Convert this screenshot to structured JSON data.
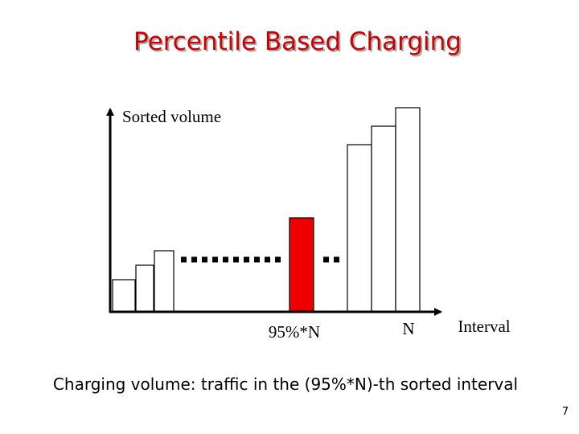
{
  "header": {
    "title": "Percentile Based Charging"
  },
  "diagram": {
    "y_axis_label": "Sorted volume",
    "x_axis_label": "Interval",
    "marker_percentile": "95%*N",
    "marker_last": "N"
  },
  "caption": "Charging volume: traffic in the (95%*N)-th sorted interval",
  "page_number": "7"
}
